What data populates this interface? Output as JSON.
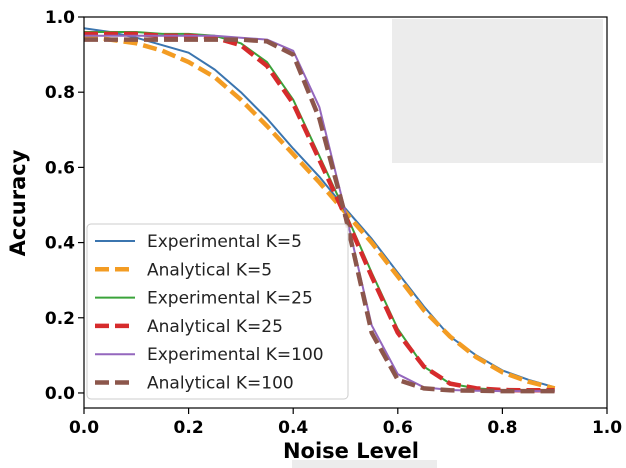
{
  "chart_data": {
    "type": "line",
    "title": "",
    "xlabel": "Noise Level",
    "ylabel": "Accuracy",
    "xlim": [
      0,
      1.0
    ],
    "ylim": [
      -0.04,
      1.0
    ],
    "x_ticks": [
      "0.0",
      "0.2",
      "0.4",
      "0.6",
      "0.8",
      "1.0"
    ],
    "y_ticks": [
      "0.0",
      "0.2",
      "0.4",
      "0.6",
      "0.8",
      "1.0"
    ],
    "grid": false,
    "legend_position": "lower-left",
    "x": [
      0.0,
      0.05,
      0.1,
      0.15,
      0.2,
      0.25,
      0.3,
      0.35,
      0.4,
      0.45,
      0.5,
      0.55,
      0.6,
      0.65,
      0.7,
      0.75,
      0.8,
      0.85,
      0.9
    ],
    "series": [
      {
        "name": "Experimental K=5",
        "color": "#3b75af",
        "style": "solid",
        "values": [
          0.97,
          0.96,
          0.945,
          0.925,
          0.905,
          0.86,
          0.8,
          0.73,
          0.65,
          0.575,
          0.49,
          0.41,
          0.32,
          0.23,
          0.15,
          0.1,
          0.06,
          0.035,
          0.015
        ]
      },
      {
        "name": "Analytical K=5",
        "color": "#f39c23",
        "style": "dashed",
        "values": [
          0.95,
          0.94,
          0.93,
          0.91,
          0.88,
          0.84,
          0.78,
          0.71,
          0.635,
          0.56,
          0.48,
          0.4,
          0.31,
          0.22,
          0.15,
          0.095,
          0.055,
          0.03,
          0.012
        ]
      },
      {
        "name": "Experimental K=25",
        "color": "#3aa33a",
        "style": "solid",
        "values": [
          0.96,
          0.96,
          0.96,
          0.955,
          0.955,
          0.95,
          0.93,
          0.88,
          0.78,
          0.63,
          0.48,
          0.32,
          0.17,
          0.07,
          0.025,
          0.012,
          0.008,
          0.007,
          0.007
        ]
      },
      {
        "name": "Analytical K=25",
        "color": "#d62b2c",
        "style": "dashed",
        "values": [
          0.955,
          0.955,
          0.955,
          0.95,
          0.95,
          0.945,
          0.925,
          0.87,
          0.77,
          0.62,
          0.47,
          0.31,
          0.16,
          0.07,
          0.025,
          0.012,
          0.008,
          0.007,
          0.007
        ]
      },
      {
        "name": "Experimental K=100",
        "color": "#9467bd",
        "style": "solid",
        "values": [
          0.95,
          0.95,
          0.95,
          0.95,
          0.95,
          0.95,
          0.945,
          0.94,
          0.91,
          0.76,
          0.48,
          0.18,
          0.05,
          0.015,
          0.008,
          0.006,
          0.005,
          0.005,
          0.005
        ]
      },
      {
        "name": "Analytical K=100",
        "color": "#8c564b",
        "style": "dashed",
        "values": [
          0.94,
          0.94,
          0.94,
          0.94,
          0.94,
          0.94,
          0.94,
          0.935,
          0.9,
          0.73,
          0.47,
          0.16,
          0.035,
          0.012,
          0.007,
          0.006,
          0.005,
          0.005,
          0.005
        ]
      }
    ]
  }
}
